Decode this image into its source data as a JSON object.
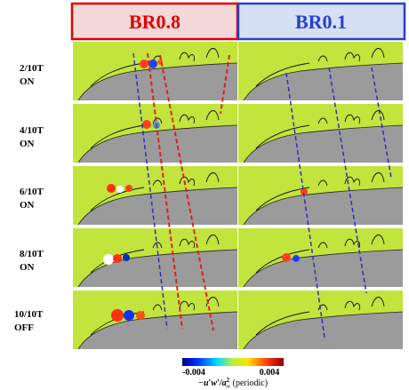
{
  "columns": [
    "BR0.8",
    "BR0.1"
  ],
  "rows": [
    {
      "phase": "2/10T",
      "state": "ON"
    },
    {
      "phase": "4/10T",
      "state": "ON"
    },
    {
      "phase": "6/10T",
      "state": "ON"
    },
    {
      "phase": "8/10T",
      "state": "ON"
    },
    {
      "phase": "10/10T",
      "state": "OFF"
    }
  ],
  "colorbar": {
    "min_label": "-0.004",
    "max_label": "0.004",
    "label_main": "−u′w′/a",
    "label_sup": "2",
    "label_sub": "∞",
    "label_suffix": " (periodic)"
  }
}
